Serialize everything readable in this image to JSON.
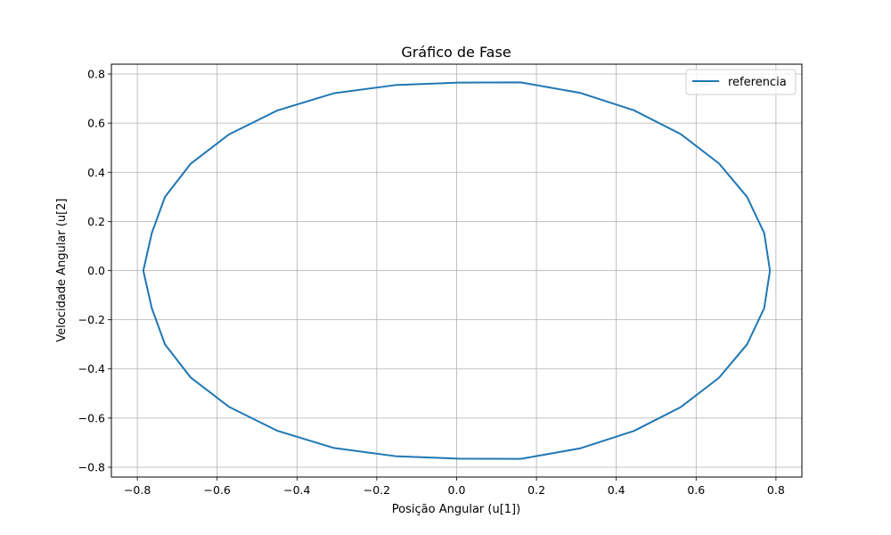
{
  "chart_data": {
    "type": "line",
    "title": "Gráfico de Fase",
    "xlabel": "Posição Angular (u[1])",
    "ylabel": "Velocidade Angular (u[2]",
    "xlim": [
      -0.865,
      0.865
    ],
    "ylim": [
      -0.84,
      0.84
    ],
    "x_ticks": [
      -0.8,
      -0.6,
      -0.4,
      -0.2,
      0.0,
      0.2,
      0.4,
      0.6,
      0.8
    ],
    "x_tick_labels": [
      "−0.8",
      "−0.6",
      "−0.4",
      "−0.2",
      "0.0",
      "0.2",
      "0.4",
      "0.6",
      "0.8"
    ],
    "y_ticks": [
      -0.8,
      -0.6,
      -0.4,
      -0.2,
      0.0,
      0.2,
      0.4,
      0.6,
      0.8
    ],
    "y_tick_labels": [
      "−0.8",
      "−0.6",
      "−0.4",
      "−0.2",
      "0.0",
      "0.2",
      "0.4",
      "0.6",
      "0.8"
    ],
    "grid": true,
    "legend_position": "top-right",
    "series": [
      {
        "name": "referencia",
        "color": "#1f77b4",
        "x": [
          0.785,
          0.7705,
          0.7274,
          0.6571,
          0.5615,
          0.4441,
          0.3088,
          0.1605,
          0.0044,
          -0.1538,
          -0.3073,
          -0.4487,
          -0.5709,
          -0.6668,
          -0.7308,
          -0.7637,
          -0.785,
          -0.7637,
          -0.7308,
          -0.6668,
          -0.5709,
          -0.4487,
          -0.3073,
          -0.1538,
          0.0044,
          0.1605,
          0.3088,
          0.4441,
          0.5615,
          0.6571,
          0.7274,
          0.7705,
          0.785
        ],
        "y": [
          0.0,
          -0.1532,
          -0.3005,
          -0.4363,
          -0.5553,
          -0.6524,
          -0.7236,
          -0.7659,
          -0.765,
          -0.755,
          -0.7217,
          -0.6521,
          -0.5537,
          -0.4342,
          -0.2997,
          -0.1529,
          0.0,
          0.1529,
          0.2997,
          0.4342,
          0.5537,
          0.6521,
          0.7217,
          0.755,
          0.765,
          0.7659,
          0.7236,
          0.6524,
          0.5553,
          0.4363,
          0.3005,
          0.1532,
          0.0
        ]
      }
    ]
  }
}
